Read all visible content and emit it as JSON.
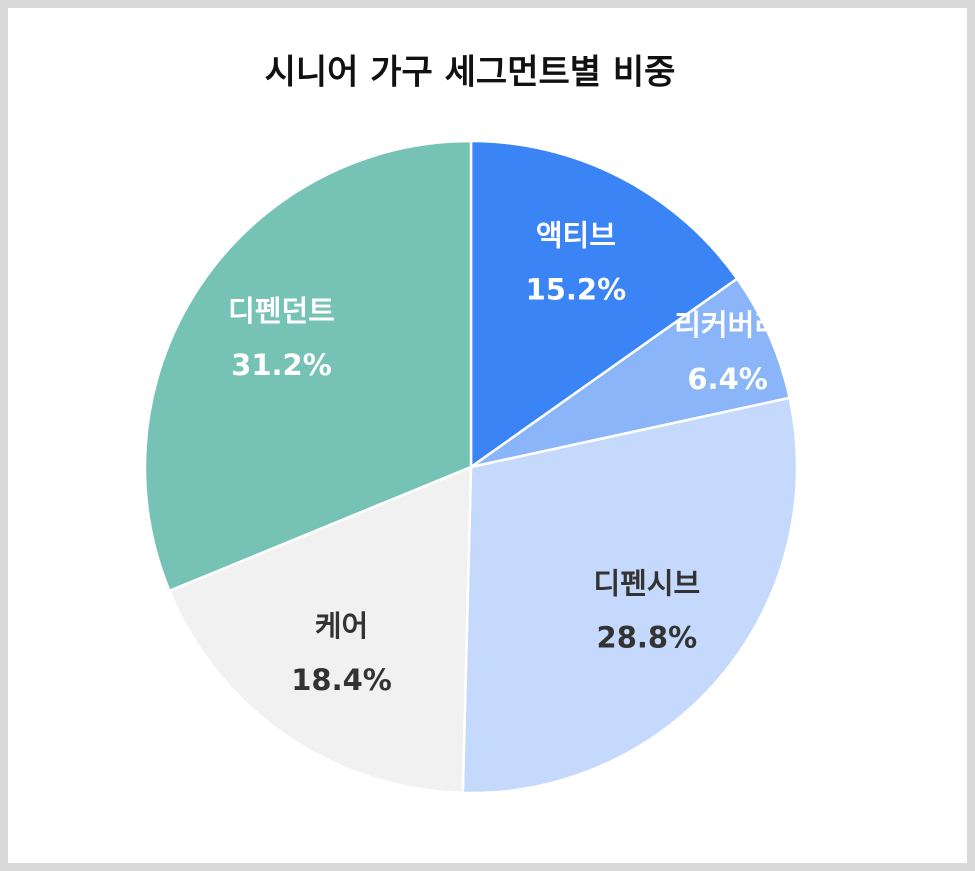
{
  "chart_data": {
    "type": "pie",
    "title": "시니어 가구 세그먼트별 비중",
    "categories": [
      "액티브",
      "리커버리",
      "디펜시브",
      "케어",
      "디펜던트"
    ],
    "values": [
      15.2,
      6.4,
      28.8,
      18.4,
      31.2
    ],
    "value_labels": [
      "15.2%",
      "6.4%",
      "28.8%",
      "18.4%",
      "31.2%"
    ],
    "colors": [
      "#3b84f6",
      "#8bb5f9",
      "#c5d9fd",
      "#f1f1f1",
      "#76c3b5"
    ]
  }
}
